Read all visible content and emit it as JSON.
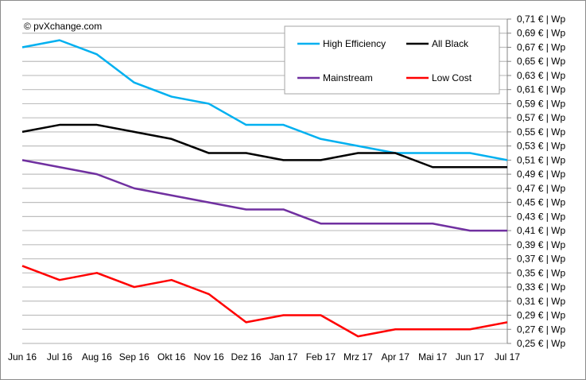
{
  "watermark": "© pvXchange.com",
  "chart_data": {
    "type": "line",
    "categories": [
      "Jun 16",
      "Jul 16",
      "Aug 16",
      "Sep 16",
      "Okt 16",
      "Nov 16",
      "Dez 16",
      "Jan 17",
      "Feb 17",
      "Mrz 17",
      "Apr 17",
      "Mai 17",
      "Jun 17",
      "Jul 17"
    ],
    "y_axis": {
      "position": "right",
      "min": 0.25,
      "max": 0.71,
      "step": 0.02,
      "tick_format": "0,00 € | Wp",
      "unit": "€ | Wp"
    },
    "grid": true,
    "legend": {
      "placement": "top-right"
    },
    "series": [
      {
        "name": "High Efficiency",
        "color": "#00b0f0",
        "values": [
          0.67,
          0.68,
          0.66,
          0.62,
          0.6,
          0.59,
          0.56,
          0.56,
          0.54,
          0.53,
          0.52,
          0.52,
          0.52,
          0.51
        ]
      },
      {
        "name": "All Black",
        "color": "#000000",
        "values": [
          0.55,
          0.56,
          0.56,
          0.55,
          0.54,
          0.52,
          0.52,
          0.51,
          0.51,
          0.52,
          0.52,
          0.5,
          0.5,
          0.5
        ]
      },
      {
        "name": "Mainstream",
        "color": "#7030a0",
        "values": [
          0.51,
          0.5,
          0.49,
          0.47,
          0.46,
          0.45,
          0.44,
          0.44,
          0.42,
          0.42,
          0.42,
          0.42,
          0.41,
          0.41
        ]
      },
      {
        "name": "Low Cost",
        "color": "#ff0000",
        "values": [
          0.36,
          0.34,
          0.35,
          0.33,
          0.34,
          0.32,
          0.28,
          0.29,
          0.29,
          0.26,
          0.27,
          0.27,
          0.27,
          0.28
        ]
      }
    ]
  }
}
